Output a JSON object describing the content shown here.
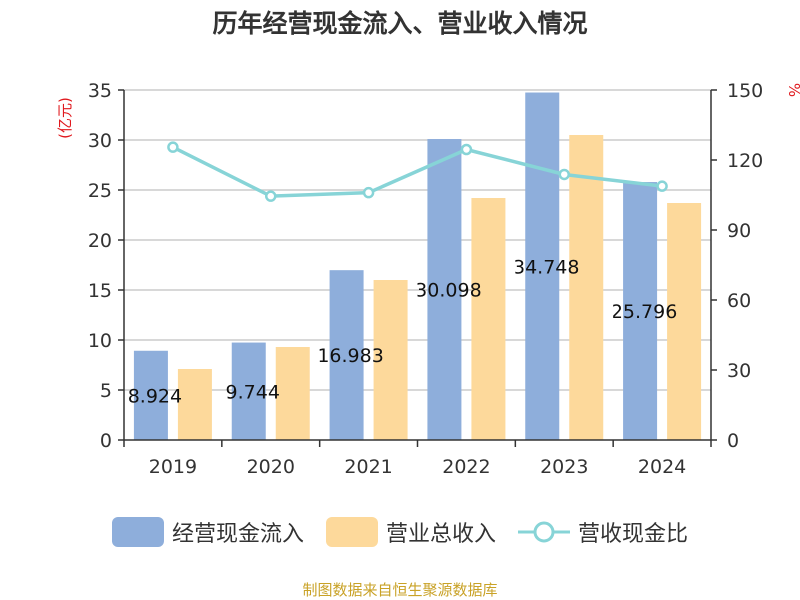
{
  "chart_data": {
    "type": "bar",
    "title": "历年经营现金流入、营业收入情况",
    "categories": [
      "2019",
      "2020",
      "2021",
      "2022",
      "2023",
      "2024"
    ],
    "ylabel": "(亿元)",
    "y2label": "%",
    "ylim": [
      0,
      35
    ],
    "yticks": [
      0,
      5,
      10,
      15,
      20,
      25,
      30,
      35
    ],
    "y2lim": [
      0,
      150
    ],
    "y2ticks": [
      0,
      30,
      60,
      90,
      120,
      150
    ],
    "grid": true,
    "legend_position": "bottom",
    "series": [
      {
        "name": "经营现金流入",
        "type": "bar",
        "axis": "left",
        "color": "#8eaedb",
        "values": [
          8.924,
          9.744,
          16.983,
          30.098,
          34.748,
          25.796
        ],
        "labels": [
          "8.924",
          "9.744",
          "16.983",
          "30.098",
          "34.748",
          "25.796"
        ]
      },
      {
        "name": "营业总收入",
        "type": "bar",
        "axis": "left",
        "color": "#fdd99b",
        "values": [
          7.1,
          9.3,
          16.0,
          24.2,
          30.5,
          23.7
        ]
      },
      {
        "name": "营收现金比",
        "type": "line",
        "axis": "right",
        "color": "#87d4d7",
        "values": [
          125.5,
          104.5,
          106.0,
          124.5,
          113.8,
          108.8
        ]
      }
    ],
    "source": "制图数据来自恒生聚源数据库"
  }
}
